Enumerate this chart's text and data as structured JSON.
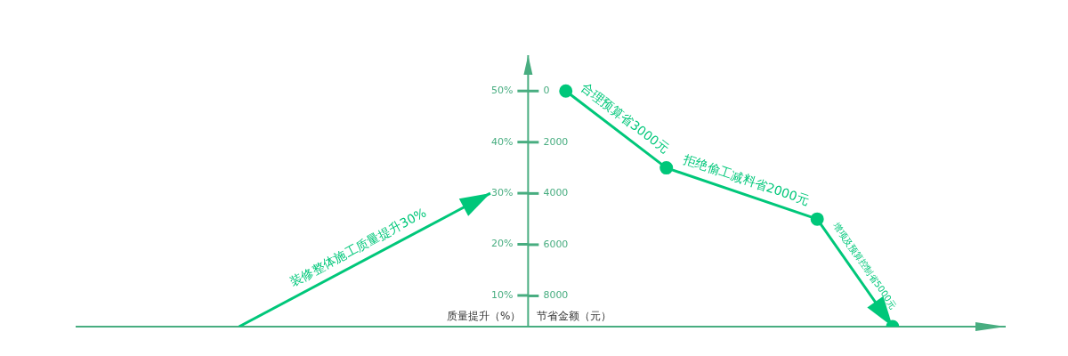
{
  "chart_data": {
    "type": "line",
    "categories": [
      null,
      null,
      null,
      null,
      null,
      null,
      null,
      null,
      null,
      null,
      null,
      null,
      null,
      null,
      null,
      null,
      null,
      null,
      null,
      null,
      null,
      null,
      null,
      null,
      null,
      null,
      null,
      null,
      null,
      null,
      null,
      null,
      null,
      null,
      null,
      null,
      null
    ],
    "ylabel": "质量提升（%）",
    "y2label": "节省金额（元）",
    "ylim": [
      3.9,
      57
    ],
    "yticks": [
      {
        "value": 10,
        "label": "10%"
      },
      {
        "value": 20,
        "label": "20%"
      },
      {
        "value": 30,
        "label": "30%"
      },
      {
        "value": 40,
        "label": "40%"
      },
      {
        "value": 50,
        "label": "50%"
      }
    ],
    "y2lim": [
      9200,
      -1400
    ],
    "y2ticks": [
      0,
      2000,
      4000,
      6000,
      8000
    ],
    "series": [
      {
        "color": "#00c77a",
        "marker": "none",
        "values": [
          null,
          null,
          null,
          null,
          null,
          null,
          3.9,
          null,
          null,
          null,
          null,
          null,
          null,
          null,
          null,
          null,
          30,
          null,
          null,
          null,
          null,
          null,
          null,
          null,
          null,
          null,
          null,
          null,
          null,
          null,
          null,
          null,
          null,
          null,
          null,
          null,
          null
        ]
      },
      {
        "color": "#00c77a",
        "marker": "circle",
        "axis": "y2",
        "values": [
          null,
          null,
          null,
          null,
          null,
          null,
          null,
          null,
          null,
          null,
          null,
          null,
          null,
          null,
          null,
          null,
          null,
          null,
          null,
          0,
          null,
          null,
          null,
          3000,
          null,
          null,
          null,
          null,
          null,
          5000,
          null,
          null,
          9200,
          null,
          null,
          null,
          null
        ]
      }
    ],
    "annotations": [
      "装修整体施工质量提升30%",
      "合理预算省3000元",
      "拒绝偷工减料省2000元",
      "增项及预算控制省5000元"
    ]
  }
}
